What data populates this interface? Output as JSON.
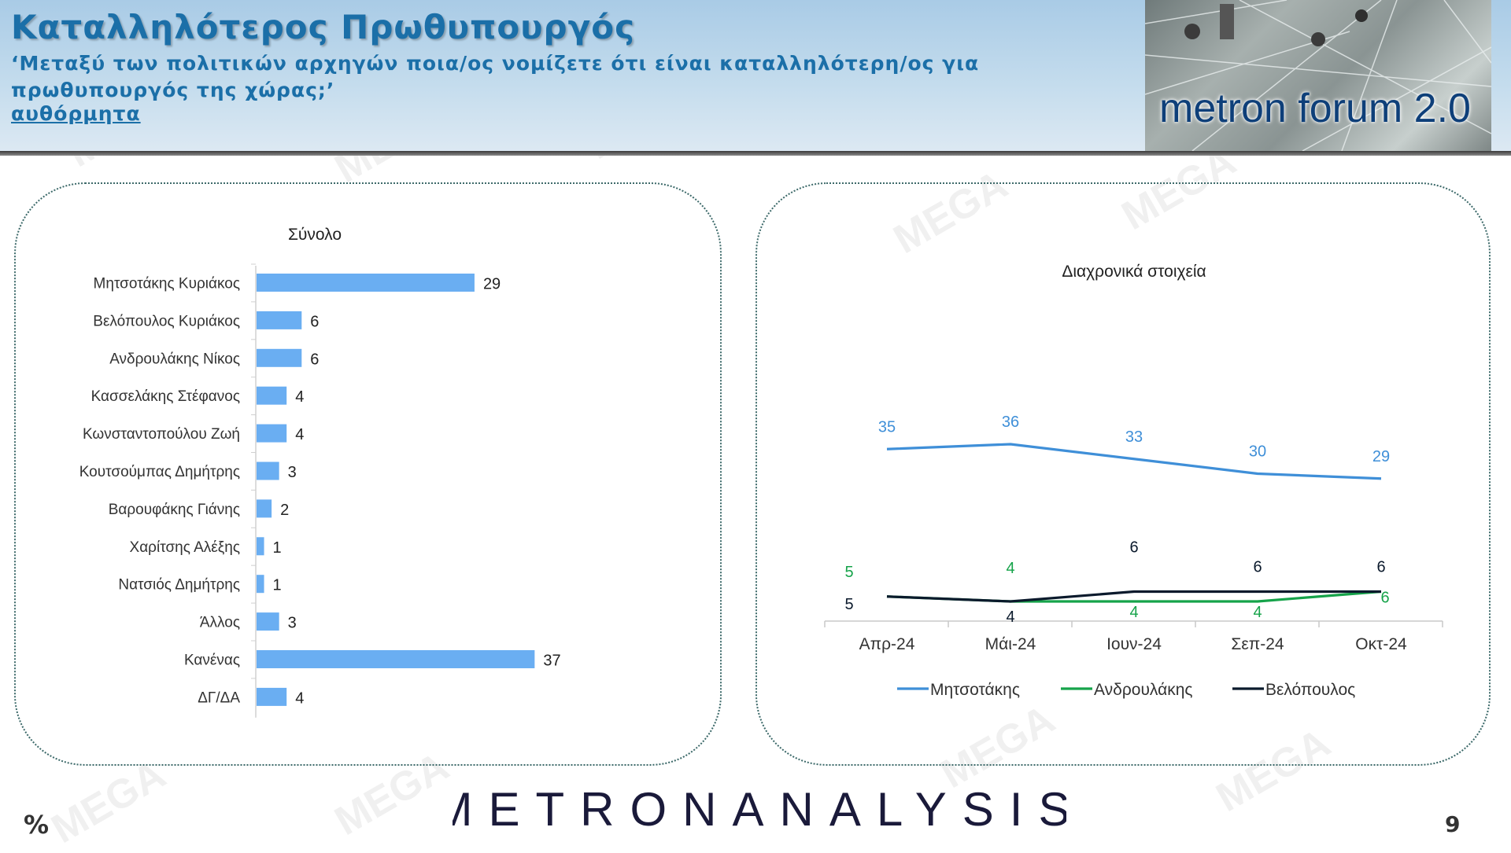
{
  "header": {
    "title": "Καταλληλότερος Πρωθυπουργός",
    "question": "‘Μεταξύ των πολιτικών αρχηγών ποια/ος νομίζετε ότι είναι καταλληλότερη/ος για πρωθυπουργός της χώρας;’",
    "note": "αυθόρμητα",
    "logo": "metron forum 2.0"
  },
  "watermark": "MEGA",
  "footer": {
    "brand": "METRONANALYSIS",
    "unit": "%",
    "page": "9"
  },
  "chart_data": [
    {
      "type": "bar",
      "orientation": "horizontal",
      "title": "Σύνολο",
      "categories": [
        "Μητσοτάκης Κυριάκος",
        "Βελόπουλος Κυριάκος",
        "Ανδρουλάκης Νίκος",
        "Κασσελάκης Στέφανος",
        "Κωνσταντοπούλου Ζωή",
        "Κουτσούμπας Δημήτρης",
        "Βαρουφάκης Γιάνης",
        "Χαρίτσης Αλέξης",
        "Νατσιός Δημήτρης",
        "Άλλος",
        "Κανένας",
        "ΔΓ/ΔΑ"
      ],
      "values": [
        29,
        6,
        6,
        4,
        4,
        3,
        2,
        1,
        1,
        3,
        37,
        4
      ],
      "color": "#6aaef2"
    },
    {
      "type": "line",
      "title": "Διαχρονικά στοιχεία",
      "categories": [
        "Απρ-24",
        "Μάι-24",
        "Ιουν-24",
        "Σεπ-24",
        "Οκτ-24"
      ],
      "series": [
        {
          "name": "Μητσοτάκης",
          "values": [
            35,
            36,
            33,
            30,
            29
          ],
          "color": "#3f8fd8"
        },
        {
          "name": "Ανδρουλάκης",
          "values": [
            5,
            4,
            4,
            4,
            6
          ],
          "color": "#16a34a"
        },
        {
          "name": "Βελόπουλος",
          "values": [
            5,
            4,
            6,
            6,
            6
          ],
          "color": "#0b1a2c"
        }
      ],
      "legend": "bottom"
    }
  ]
}
